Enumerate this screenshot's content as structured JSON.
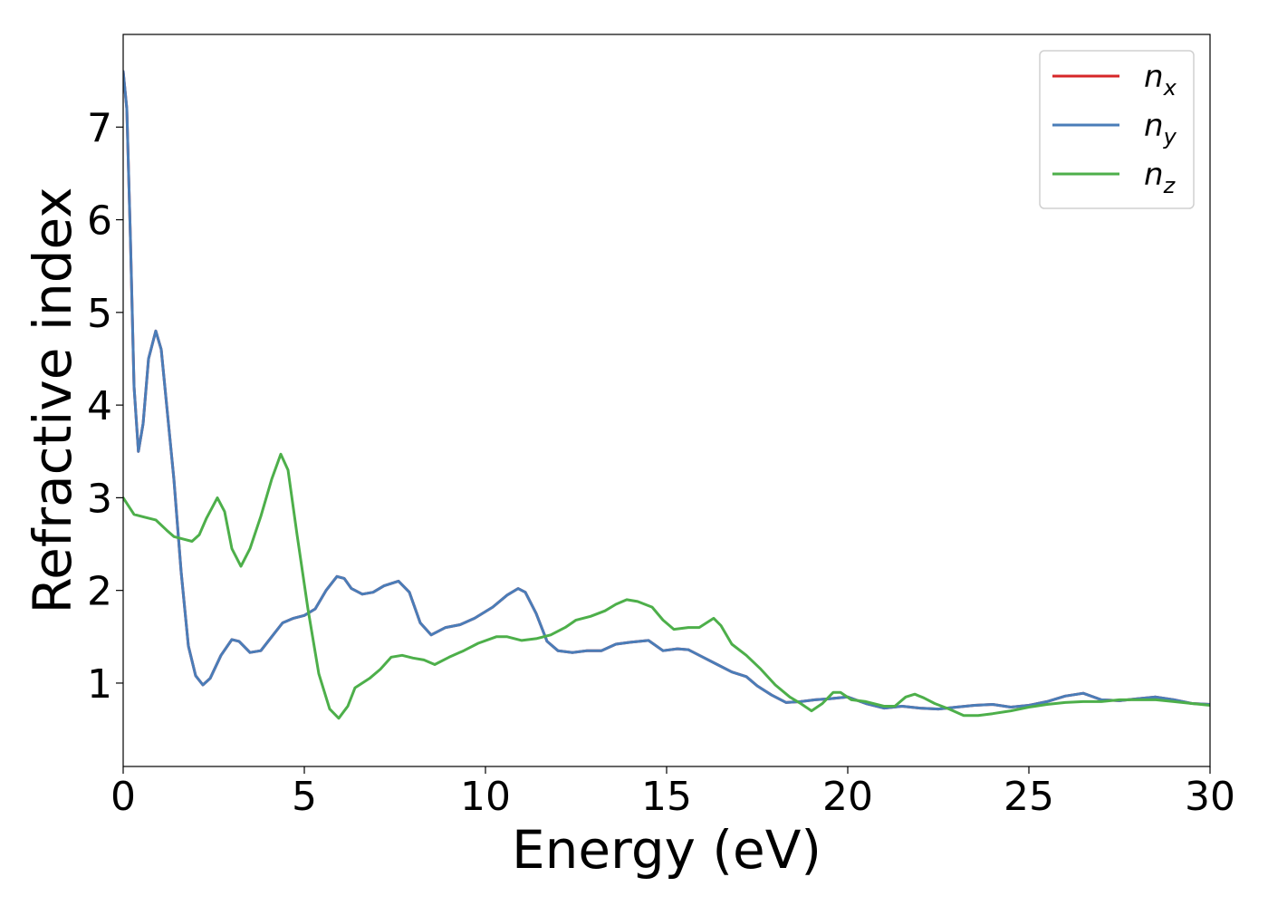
{
  "chart_data": {
    "type": "line",
    "title": "",
    "xlabel": "Energy (eV)",
    "ylabel": "Refractive index",
    "xlim": [
      0,
      30
    ],
    "ylim": [
      0.1,
      8.0
    ],
    "xticks": [
      0,
      5,
      10,
      15,
      20,
      25,
      30
    ],
    "xtick_labels": [
      "0",
      "5",
      "10",
      "15",
      "20",
      "25",
      "30"
    ],
    "yticks": [
      1,
      2,
      3,
      4,
      5,
      6,
      7
    ],
    "ytick_labels": [
      "1",
      "2",
      "3",
      "4",
      "5",
      "6",
      "7"
    ],
    "grid": false,
    "legend_position": "top-right",
    "series": [
      {
        "name": "n",
        "subscript": "x",
        "color": "#d62728",
        "points": [
          [
            0,
            7.6
          ],
          [
            0.1,
            7.2
          ],
          [
            0.2,
            5.8
          ],
          [
            0.3,
            4.2
          ],
          [
            0.42,
            3.5
          ],
          [
            0.55,
            3.8
          ],
          [
            0.7,
            4.5
          ],
          [
            0.9,
            4.8
          ],
          [
            1.05,
            4.6
          ],
          [
            1.2,
            4.0
          ],
          [
            1.4,
            3.2
          ],
          [
            1.6,
            2.2
          ],
          [
            1.8,
            1.4
          ],
          [
            2.0,
            1.08
          ],
          [
            2.2,
            0.98
          ],
          [
            2.4,
            1.05
          ],
          [
            2.7,
            1.3
          ],
          [
            3.0,
            1.47
          ],
          [
            3.2,
            1.45
          ],
          [
            3.5,
            1.33
          ],
          [
            3.8,
            1.35
          ],
          [
            4.1,
            1.5
          ],
          [
            4.4,
            1.65
          ],
          [
            4.7,
            1.7
          ],
          [
            5.0,
            1.73
          ],
          [
            5.3,
            1.8
          ],
          [
            5.6,
            2.0
          ],
          [
            5.9,
            2.15
          ],
          [
            6.1,
            2.13
          ],
          [
            6.3,
            2.02
          ],
          [
            6.6,
            1.96
          ],
          [
            6.9,
            1.98
          ],
          [
            7.2,
            2.05
          ],
          [
            7.6,
            2.1
          ],
          [
            7.9,
            1.98
          ],
          [
            8.2,
            1.65
          ],
          [
            8.5,
            1.52
          ],
          [
            8.9,
            1.6
          ],
          [
            9.3,
            1.63
          ],
          [
            9.7,
            1.7
          ],
          [
            10.2,
            1.82
          ],
          [
            10.6,
            1.95
          ],
          [
            10.9,
            2.02
          ],
          [
            11.1,
            1.98
          ],
          [
            11.4,
            1.75
          ],
          [
            11.7,
            1.45
          ],
          [
            12.0,
            1.35
          ],
          [
            12.4,
            1.33
          ],
          [
            12.8,
            1.35
          ],
          [
            13.2,
            1.35
          ],
          [
            13.6,
            1.42
          ],
          [
            14.0,
            1.44
          ],
          [
            14.5,
            1.46
          ],
          [
            14.9,
            1.35
          ],
          [
            15.3,
            1.37
          ],
          [
            15.6,
            1.36
          ],
          [
            16.0,
            1.28
          ],
          [
            16.4,
            1.2
          ],
          [
            16.8,
            1.12
          ],
          [
            17.2,
            1.07
          ],
          [
            17.5,
            0.97
          ],
          [
            17.9,
            0.87
          ],
          [
            18.3,
            0.79
          ],
          [
            18.7,
            0.8
          ],
          [
            19.1,
            0.82
          ],
          [
            19.5,
            0.83
          ],
          [
            20.0,
            0.85
          ],
          [
            20.5,
            0.78
          ],
          [
            21.0,
            0.73
          ],
          [
            21.5,
            0.75
          ],
          [
            22.0,
            0.73
          ],
          [
            22.5,
            0.72
          ],
          [
            23.0,
            0.74
          ],
          [
            23.5,
            0.76
          ],
          [
            24.0,
            0.77
          ],
          [
            24.5,
            0.74
          ],
          [
            25.0,
            0.76
          ],
          [
            25.5,
            0.8
          ],
          [
            26.0,
            0.86
          ],
          [
            26.5,
            0.89
          ],
          [
            27.0,
            0.82
          ],
          [
            27.5,
            0.81
          ],
          [
            28.0,
            0.83
          ],
          [
            28.5,
            0.85
          ],
          [
            29.0,
            0.82
          ],
          [
            29.5,
            0.78
          ],
          [
            30.0,
            0.77
          ]
        ]
      },
      {
        "name": "n",
        "subscript": "y",
        "color": "#4a7db8",
        "points": [
          [
            0,
            7.6
          ],
          [
            0.1,
            7.2
          ],
          [
            0.2,
            5.8
          ],
          [
            0.3,
            4.2
          ],
          [
            0.42,
            3.5
          ],
          [
            0.55,
            3.8
          ],
          [
            0.7,
            4.5
          ],
          [
            0.9,
            4.8
          ],
          [
            1.05,
            4.6
          ],
          [
            1.2,
            4.0
          ],
          [
            1.4,
            3.2
          ],
          [
            1.6,
            2.2
          ],
          [
            1.8,
            1.4
          ],
          [
            2.0,
            1.08
          ],
          [
            2.2,
            0.98
          ],
          [
            2.4,
            1.05
          ],
          [
            2.7,
            1.3
          ],
          [
            3.0,
            1.47
          ],
          [
            3.2,
            1.45
          ],
          [
            3.5,
            1.33
          ],
          [
            3.8,
            1.35
          ],
          [
            4.1,
            1.5
          ],
          [
            4.4,
            1.65
          ],
          [
            4.7,
            1.7
          ],
          [
            5.0,
            1.73
          ],
          [
            5.3,
            1.8
          ],
          [
            5.6,
            2.0
          ],
          [
            5.9,
            2.15
          ],
          [
            6.1,
            2.13
          ],
          [
            6.3,
            2.02
          ],
          [
            6.6,
            1.96
          ],
          [
            6.9,
            1.98
          ],
          [
            7.2,
            2.05
          ],
          [
            7.6,
            2.1
          ],
          [
            7.9,
            1.98
          ],
          [
            8.2,
            1.65
          ],
          [
            8.5,
            1.52
          ],
          [
            8.9,
            1.6
          ],
          [
            9.3,
            1.63
          ],
          [
            9.7,
            1.7
          ],
          [
            10.2,
            1.82
          ],
          [
            10.6,
            1.95
          ],
          [
            10.9,
            2.02
          ],
          [
            11.1,
            1.98
          ],
          [
            11.4,
            1.75
          ],
          [
            11.7,
            1.45
          ],
          [
            12.0,
            1.35
          ],
          [
            12.4,
            1.33
          ],
          [
            12.8,
            1.35
          ],
          [
            13.2,
            1.35
          ],
          [
            13.6,
            1.42
          ],
          [
            14.0,
            1.44
          ],
          [
            14.5,
            1.46
          ],
          [
            14.9,
            1.35
          ],
          [
            15.3,
            1.37
          ],
          [
            15.6,
            1.36
          ],
          [
            16.0,
            1.28
          ],
          [
            16.4,
            1.2
          ],
          [
            16.8,
            1.12
          ],
          [
            17.2,
            1.07
          ],
          [
            17.5,
            0.97
          ],
          [
            17.9,
            0.87
          ],
          [
            18.3,
            0.79
          ],
          [
            18.7,
            0.8
          ],
          [
            19.1,
            0.82
          ],
          [
            19.5,
            0.83
          ],
          [
            20.0,
            0.85
          ],
          [
            20.5,
            0.78
          ],
          [
            21.0,
            0.73
          ],
          [
            21.5,
            0.75
          ],
          [
            22.0,
            0.73
          ],
          [
            22.5,
            0.72
          ],
          [
            23.0,
            0.74
          ],
          [
            23.5,
            0.76
          ],
          [
            24.0,
            0.77
          ],
          [
            24.5,
            0.74
          ],
          [
            25.0,
            0.76
          ],
          [
            25.5,
            0.8
          ],
          [
            26.0,
            0.86
          ],
          [
            26.5,
            0.89
          ],
          [
            27.0,
            0.82
          ],
          [
            27.5,
            0.81
          ],
          [
            28.0,
            0.83
          ],
          [
            28.5,
            0.85
          ],
          [
            29.0,
            0.82
          ],
          [
            29.5,
            0.78
          ],
          [
            30.0,
            0.77
          ]
        ]
      },
      {
        "name": "n",
        "subscript": "z",
        "color": "#4daf4a",
        "points": [
          [
            0,
            3.0
          ],
          [
            0.3,
            2.82
          ],
          [
            0.6,
            2.79
          ],
          [
            0.9,
            2.76
          ],
          [
            1.2,
            2.65
          ],
          [
            1.4,
            2.58
          ],
          [
            1.7,
            2.55
          ],
          [
            1.9,
            2.53
          ],
          [
            2.1,
            2.6
          ],
          [
            2.3,
            2.78
          ],
          [
            2.6,
            3.0
          ],
          [
            2.8,
            2.85
          ],
          [
            3.0,
            2.45
          ],
          [
            3.25,
            2.26
          ],
          [
            3.5,
            2.45
          ],
          [
            3.8,
            2.8
          ],
          [
            4.1,
            3.2
          ],
          [
            4.35,
            3.47
          ],
          [
            4.55,
            3.3
          ],
          [
            4.8,
            2.6
          ],
          [
            5.1,
            1.8
          ],
          [
            5.4,
            1.1
          ],
          [
            5.7,
            0.72
          ],
          [
            5.95,
            0.62
          ],
          [
            6.2,
            0.75
          ],
          [
            6.4,
            0.95
          ],
          [
            6.8,
            1.05
          ],
          [
            7.1,
            1.15
          ],
          [
            7.4,
            1.28
          ],
          [
            7.7,
            1.3
          ],
          [
            8.0,
            1.27
          ],
          [
            8.3,
            1.25
          ],
          [
            8.6,
            1.2
          ],
          [
            9.0,
            1.28
          ],
          [
            9.4,
            1.35
          ],
          [
            9.8,
            1.43
          ],
          [
            10.3,
            1.5
          ],
          [
            10.6,
            1.5
          ],
          [
            11.0,
            1.46
          ],
          [
            11.4,
            1.48
          ],
          [
            11.8,
            1.52
          ],
          [
            12.2,
            1.6
          ],
          [
            12.5,
            1.68
          ],
          [
            12.9,
            1.72
          ],
          [
            13.3,
            1.78
          ],
          [
            13.6,
            1.85
          ],
          [
            13.9,
            1.9
          ],
          [
            14.2,
            1.88
          ],
          [
            14.6,
            1.82
          ],
          [
            14.9,
            1.68
          ],
          [
            15.2,
            1.58
          ],
          [
            15.6,
            1.6
          ],
          [
            15.9,
            1.6
          ],
          [
            16.3,
            1.7
          ],
          [
            16.5,
            1.62
          ],
          [
            16.8,
            1.42
          ],
          [
            17.2,
            1.3
          ],
          [
            17.6,
            1.15
          ],
          [
            18.0,
            0.98
          ],
          [
            18.4,
            0.85
          ],
          [
            18.7,
            0.78
          ],
          [
            19.0,
            0.7
          ],
          [
            19.3,
            0.78
          ],
          [
            19.6,
            0.9
          ],
          [
            19.8,
            0.9
          ],
          [
            20.1,
            0.82
          ],
          [
            20.5,
            0.8
          ],
          [
            21.0,
            0.75
          ],
          [
            21.3,
            0.75
          ],
          [
            21.6,
            0.85
          ],
          [
            21.85,
            0.88
          ],
          [
            22.1,
            0.84
          ],
          [
            22.4,
            0.78
          ],
          [
            22.8,
            0.72
          ],
          [
            23.2,
            0.65
          ],
          [
            23.6,
            0.65
          ],
          [
            24.0,
            0.67
          ],
          [
            24.5,
            0.7
          ],
          [
            25.0,
            0.74
          ],
          [
            25.5,
            0.77
          ],
          [
            26.0,
            0.79
          ],
          [
            26.5,
            0.8
          ],
          [
            27.0,
            0.8
          ],
          [
            27.5,
            0.82
          ],
          [
            28.0,
            0.82
          ],
          [
            28.5,
            0.82
          ],
          [
            29.0,
            0.8
          ],
          [
            29.5,
            0.78
          ],
          [
            30.0,
            0.76
          ]
        ]
      }
    ]
  }
}
